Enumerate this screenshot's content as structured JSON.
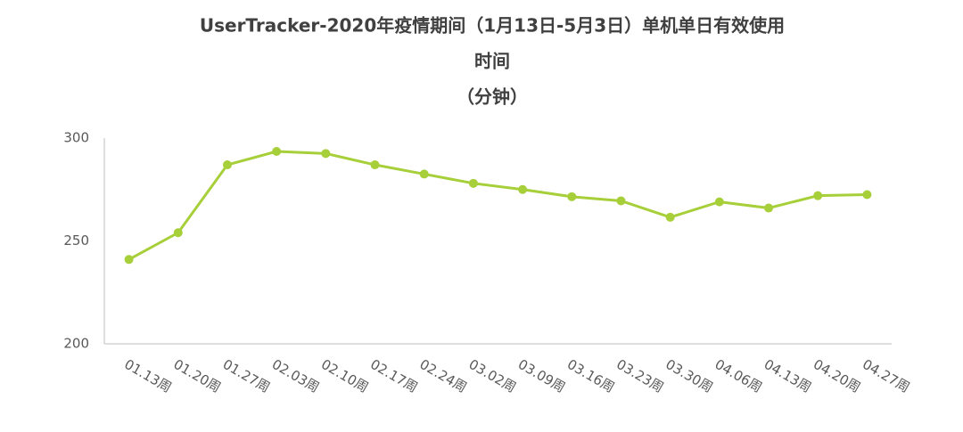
{
  "chart_data": {
    "type": "line",
    "title": [
      "UserTracker-2020年疫情期间（1月13日-5月3日）单机单日有效使用",
      "时间",
      "（分钟）"
    ],
    "categories": [
      "01.13周",
      "01.20周",
      "01.27周",
      "02.03周",
      "02.10周",
      "02.17周",
      "02.24周",
      "03.02周",
      "03.09周",
      "03.16周",
      "03.23周",
      "03.30周",
      "04.06周",
      "04.13周",
      "04.20周",
      "04.27周"
    ],
    "values": [
      241,
      254,
      287,
      293.5,
      292.5,
      287,
      282.5,
      278,
      275,
      271.5,
      269.5,
      261.5,
      269,
      266,
      272,
      272.5
    ],
    "color": "#a7cf3a",
    "ylim": [
      200,
      300
    ],
    "yticks": [
      200,
      250,
      300
    ],
    "grid": false
  }
}
